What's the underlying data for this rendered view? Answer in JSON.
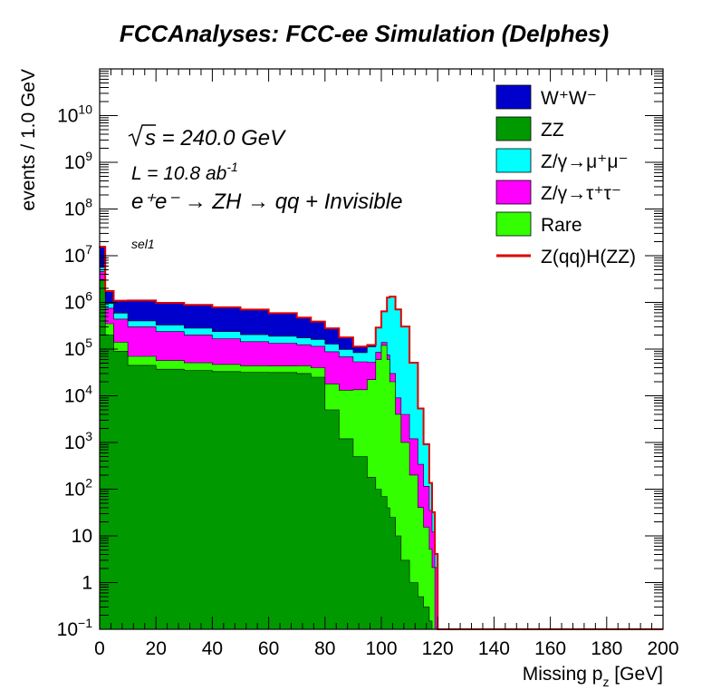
{
  "chart_data": {
    "type": "area",
    "title": "FCCAnalyses: FCC-ee Simulation (Delphes)",
    "xlabel_main": "Missing p",
    "xlabel_sub": "z",
    "xlabel_unit": "[GeV]",
    "ylabel": "events / 1.0 GeV",
    "xlim": [
      0,
      200
    ],
    "ylim": [
      0.1,
      100000000000
    ],
    "log_y": true,
    "stacked": true,
    "xticks": [
      "0",
      "20",
      "40",
      "60",
      "80",
      "100",
      "120",
      "140",
      "160",
      "180",
      "200"
    ],
    "yticks": [
      {
        "base": "10",
        "exp": "−1"
      },
      {
        "base": "1",
        "exp": ""
      },
      {
        "base": "10",
        "exp": ""
      },
      {
        "base": "10",
        "exp": "2"
      },
      {
        "base": "10",
        "exp": "3"
      },
      {
        "base": "10",
        "exp": "4"
      },
      {
        "base": "10",
        "exp": "5"
      },
      {
        "base": "10",
        "exp": "6"
      },
      {
        "base": "10",
        "exp": "7"
      },
      {
        "base": "10",
        "exp": "8"
      },
      {
        "base": "10",
        "exp": "9"
      },
      {
        "base": "10",
        "exp": "10"
      }
    ],
    "annotations": {
      "sqrt_s": "s = 240.0 GeV",
      "lumi_main": "L = 10.8 ab",
      "lumi_exp": "-1",
      "process": "e⁺e⁻ → ZH → qq + Invisible",
      "selection": "sel1"
    },
    "x": [
      0,
      2,
      5,
      10,
      20,
      30,
      40,
      50,
      60,
      70,
      75,
      80,
      85,
      90,
      95,
      98,
      100,
      102,
      103,
      105,
      107,
      110,
      113,
      115,
      117,
      118,
      119,
      120,
      200
    ],
    "series": [
      {
        "name": "ZZ",
        "color": "#009900",
        "values": [
          3000000,
          200000,
          90000,
          45000,
          37000,
          35000,
          33000,
          32000,
          31500,
          30000,
          25000,
          5000,
          1200,
          500,
          180,
          100,
          70,
          40,
          25,
          10,
          3,
          1,
          0.5,
          0.3,
          0.15,
          0.1,
          0.1,
          0.1,
          0.1
        ]
      },
      {
        "name": "Rare",
        "color": "#33ff00",
        "values": [
          100000,
          150000,
          50000,
          25000,
          20000,
          16000,
          14000,
          12000,
          12000,
          14000,
          15000,
          13000,
          12000,
          13000,
          22000,
          60000,
          120000,
          60000,
          20000,
          4000,
          1000,
          200,
          40,
          15,
          5,
          2,
          0,
          0,
          0
        ]
      },
      {
        "name": "Z/γ→τ⁺τ⁻",
        "color": "#ff00ff",
        "values": [
          1500000,
          400000,
          300000,
          230000,
          180000,
          150000,
          120000,
          100000,
          90000,
          80000,
          75000,
          70000,
          55000,
          40000,
          30000,
          25000,
          20000,
          15000,
          10000,
          5000,
          3000,
          1000,
          300,
          100,
          30,
          10,
          2,
          0,
          0
        ]
      },
      {
        "name": "Z/γ→μ⁺μ⁻",
        "color": "#00ffff",
        "values": [
          1000000,
          200000,
          150000,
          100000,
          90000,
          80000,
          70000,
          60000,
          55000,
          50000,
          45000,
          40000,
          30000,
          30000,
          60000,
          200000,
          500000,
          1200000,
          1300000,
          700000,
          300000,
          50000,
          5000,
          800,
          100,
          20,
          2,
          0,
          0
        ]
      },
      {
        "name": "W⁺W⁻",
        "color": "#0000cc",
        "values": [
          10000000,
          800000,
          500000,
          700000,
          650000,
          600000,
          550000,
          500000,
          400000,
          300000,
          230000,
          150000,
          80000,
          30000,
          10000,
          3000,
          1000,
          500,
          200,
          100,
          50,
          20,
          5,
          2,
          1,
          0,
          0,
          0,
          0
        ]
      }
    ],
    "signal": {
      "name": "Z(qq)H(ZZ)",
      "color": "#dd0000"
    },
    "legend_position": "top-right",
    "legend": [
      {
        "label": "W⁺W⁻",
        "color": "#0000cc",
        "kind": "fill"
      },
      {
        "label": "ZZ",
        "color": "#009900",
        "kind": "fill"
      },
      {
        "label": "Z/γ→μ⁺μ⁻",
        "color": "#00ffff",
        "kind": "fill"
      },
      {
        "label": "Z/γ→τ⁺τ⁻",
        "color": "#ff00ff",
        "kind": "fill"
      },
      {
        "label": "Rare",
        "color": "#33ff00",
        "kind": "fill"
      },
      {
        "label": "Z(qq)H(ZZ)",
        "color": "#dd0000",
        "kind": "line"
      }
    ]
  }
}
